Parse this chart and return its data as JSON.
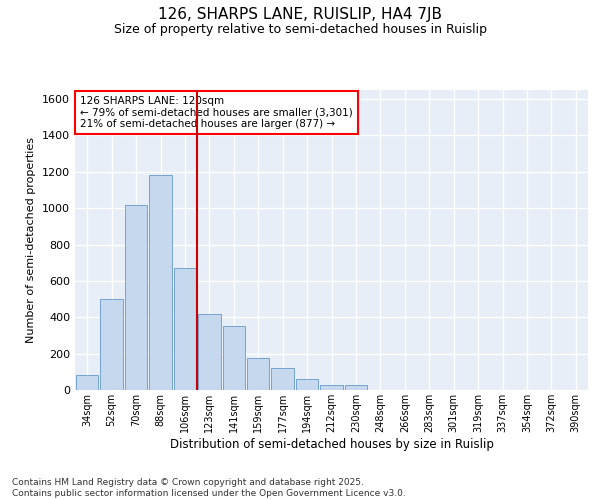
{
  "title": "126, SHARPS LANE, RUISLIP, HA4 7JB",
  "subtitle": "Size of property relative to semi-detached houses in Ruislip",
  "xlabel": "Distribution of semi-detached houses by size in Ruislip",
  "ylabel": "Number of semi-detached properties",
  "categories": [
    "34sqm",
    "52sqm",
    "70sqm",
    "88sqm",
    "106sqm",
    "123sqm",
    "141sqm",
    "159sqm",
    "177sqm",
    "194sqm",
    "212sqm",
    "230sqm",
    "248sqm",
    "266sqm",
    "283sqm",
    "301sqm",
    "319sqm",
    "337sqm",
    "354sqm",
    "372sqm",
    "390sqm"
  ],
  "values": [
    80,
    500,
    1020,
    1180,
    670,
    420,
    350,
    175,
    120,
    60,
    30,
    25,
    0,
    0,
    0,
    0,
    0,
    0,
    0,
    0,
    0
  ],
  "bar_color": "#c5d8ee",
  "bar_edge_color": "#6699cc",
  "background_color": "#e8eef7",
  "grid_color": "#ffffff",
  "vline_color": "#cc0000",
  "annotation_line1": "126 SHARPS LANE: 120sqm",
  "annotation_line2": "← 79% of semi-detached houses are smaller (3,301)",
  "annotation_line3": "21% of semi-detached houses are larger (877) →",
  "footer": "Contains HM Land Registry data © Crown copyright and database right 2025.\nContains public sector information licensed under the Open Government Licence v3.0.",
  "ylim": [
    0,
    1650
  ],
  "yticks": [
    0,
    200,
    400,
    600,
    800,
    1000,
    1200,
    1400,
    1600
  ]
}
